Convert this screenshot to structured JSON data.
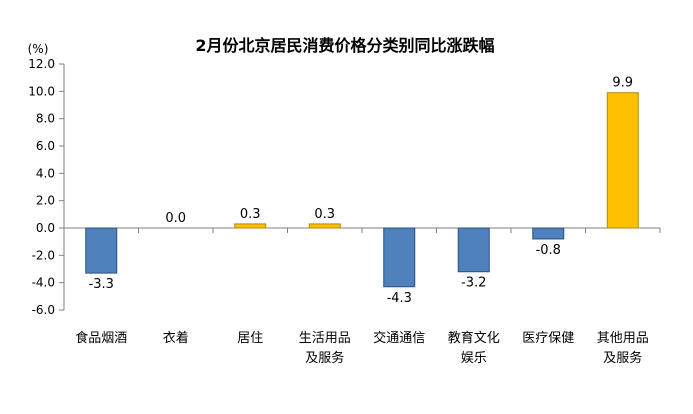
{
  "chart_data": {
    "type": "bar",
    "title": "2月份北京居民消费价格分类别同比涨跌幅",
    "unit_label": "(%)",
    "categories": [
      [
        "食品烟酒"
      ],
      [
        "衣着"
      ],
      [
        "居住"
      ],
      [
        "生活用品",
        "及服务"
      ],
      [
        "交通通信"
      ],
      [
        "教育文化",
        "娱乐"
      ],
      [
        "医疗保健"
      ],
      [
        "其他用品",
        "及服务"
      ]
    ],
    "values": [
      -3.3,
      0.0,
      0.3,
      0.3,
      -4.3,
      -3.2,
      -0.8,
      9.9
    ],
    "value_labels": [
      "-3.3",
      "0.0",
      "0.3",
      "0.3",
      "-4.3",
      "-3.2",
      "-0.8",
      "9.9"
    ],
    "yticks": [
      "12.0",
      "10.0",
      "8.0",
      "6.0",
      "4.0",
      "2.0",
      "0.0",
      "-2.0",
      "-4.0",
      "-6.0"
    ],
    "ylim": [
      -6,
      12
    ],
    "grid": false,
    "colors": {
      "positive": "#FFC000",
      "negative": "#4F81BD",
      "positive_stroke": "#B8860B",
      "negative_stroke": "#2F4F7F",
      "axis": "#808080",
      "text": "#000000"
    }
  }
}
